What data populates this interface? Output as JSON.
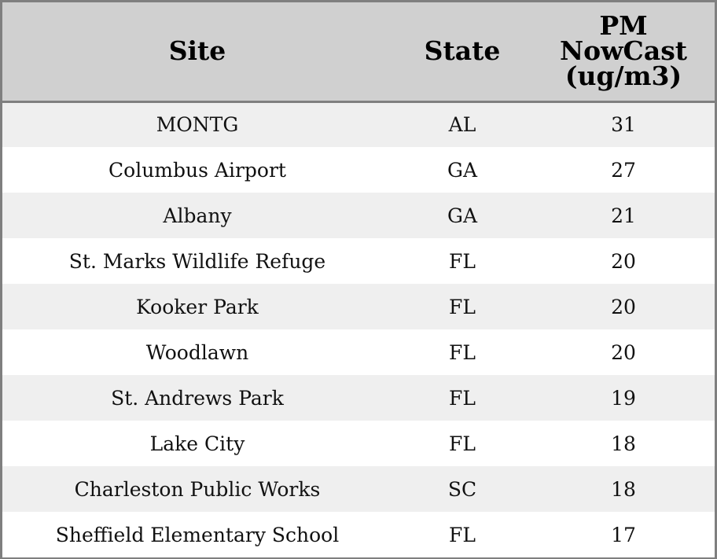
{
  "chart_data": {
    "type": "table",
    "columns": [
      "Site",
      "State",
      "PM NowCast (ug/m3)"
    ],
    "header_lines": {
      "site": [
        "Site"
      ],
      "state": [
        "State"
      ],
      "value": [
        "PM",
        "NowCast",
        "(ug/m3)"
      ]
    },
    "rows": [
      {
        "site": "MONTG",
        "state": "AL",
        "value": 31
      },
      {
        "site": "Columbus Airport",
        "state": "GA",
        "value": 27
      },
      {
        "site": "Albany",
        "state": "GA",
        "value": 21
      },
      {
        "site": "St. Marks Wildlife Refuge",
        "state": "FL",
        "value": 20
      },
      {
        "site": "Kooker Park",
        "state": "FL",
        "value": 20
      },
      {
        "site": "Woodlawn",
        "state": "FL",
        "value": 20
      },
      {
        "site": "St. Andrews Park",
        "state": "FL",
        "value": 19
      },
      {
        "site": "Lake City",
        "state": "FL",
        "value": 18
      },
      {
        "site": "Charleston Public Works",
        "state": "SC",
        "value": 18
      },
      {
        "site": "Sheffield Elementary School",
        "state": "FL",
        "value": 17
      }
    ],
    "colors": {
      "header_background": "#d0d0d0",
      "row_stripe": "#efefef",
      "row_plain": "#ffffff",
      "border": "#7f7f7f"
    }
  }
}
